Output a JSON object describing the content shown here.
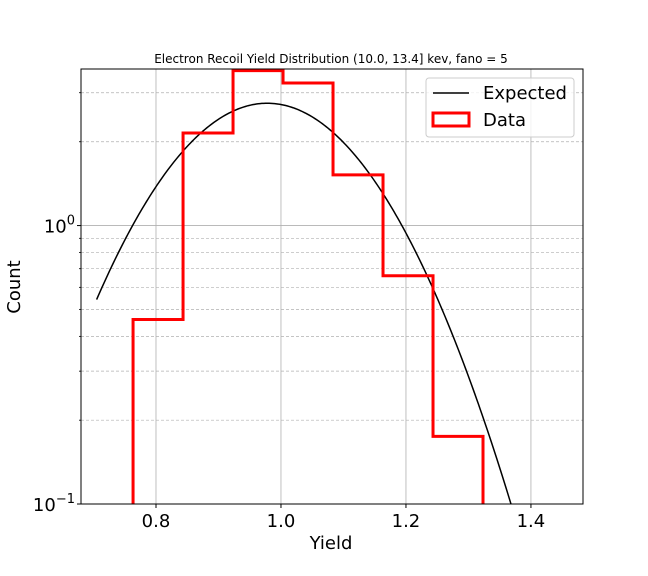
{
  "chart_data": {
    "type": "line",
    "title": "Electron Recoil Yield Distribution (10.0, 13.4] kev, fano = 5",
    "xlabel": "Yield",
    "ylabel": "Count",
    "xlim": [
      0.68,
      1.4833
    ],
    "ylim": [
      0.1,
      3.65
    ],
    "yscale": "log",
    "grid": true,
    "legend_position": "top-right",
    "x_ticks": [
      {
        "value": 0.8,
        "label": "0.8"
      },
      {
        "value": 1.0,
        "label": "1.0"
      },
      {
        "value": 1.2,
        "label": "1.2"
      },
      {
        "value": 1.4,
        "label": "1.4"
      }
    ],
    "y_ticks": [
      {
        "value": 0.1,
        "base": "10",
        "exp": "−1"
      },
      {
        "value": 1.0,
        "base": "10",
        "exp": "0"
      }
    ],
    "series": [
      {
        "name": "Expected",
        "type": "line",
        "color": "#000000",
        "model": "gaussian",
        "amplitude": 2.75,
        "mean": 0.978,
        "sigma": 0.1515,
        "x_range": [
          0.705,
          1.41
        ]
      },
      {
        "name": "Data",
        "type": "step",
        "color": "#ff0000",
        "bin_edges": [
          0.7633,
          0.8433,
          0.9233,
          1.0033,
          1.0833,
          1.1633,
          1.2433,
          1.3233
        ],
        "values": [
          0.46,
          2.15,
          3.6,
          3.25,
          1.52,
          0.66,
          0.175
        ]
      }
    ]
  }
}
